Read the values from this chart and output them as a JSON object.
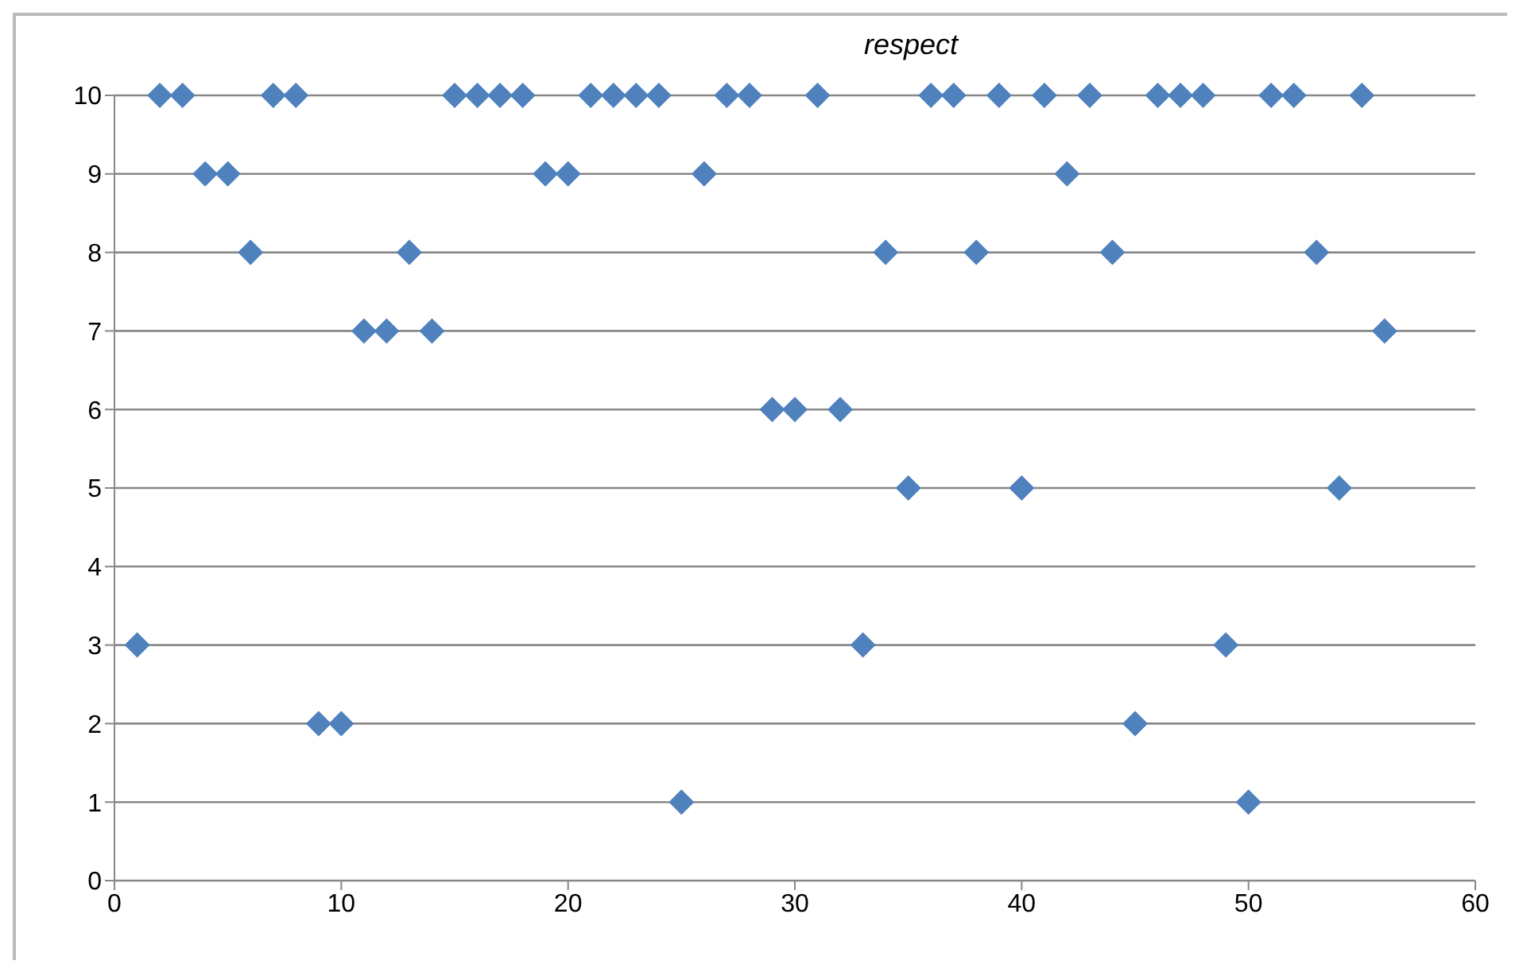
{
  "chart_data": {
    "type": "scatter",
    "title": "respect",
    "x": [
      1,
      2,
      3,
      4,
      5,
      6,
      7,
      8,
      9,
      10,
      11,
      12,
      13,
      14,
      15,
      16,
      17,
      18,
      19,
      20,
      21,
      22,
      23,
      24,
      25,
      26,
      27,
      28,
      29,
      30,
      31,
      32,
      33,
      34,
      35,
      36,
      37,
      38,
      39,
      40,
      41,
      42,
      43,
      44,
      45,
      46,
      47,
      48,
      49,
      50,
      51,
      52,
      53,
      54,
      55,
      56
    ],
    "series": [
      {
        "color": "#4f81bd",
        "values": [
          3,
          10,
          10,
          9,
          9,
          8,
          10,
          10,
          2,
          2,
          7,
          7,
          8,
          7,
          10,
          10,
          10,
          10,
          9,
          9,
          10,
          10,
          10,
          10,
          1,
          9,
          10,
          10,
          6,
          6,
          10,
          6,
          3,
          8,
          5,
          10,
          10,
          8,
          10,
          5,
          10,
          9,
          10,
          8,
          2,
          10,
          10,
          10,
          3,
          1,
          10,
          10,
          8,
          5,
          10,
          7
        ]
      }
    ],
    "xlim": [
      0,
      60
    ],
    "xticks": [
      0,
      10,
      20,
      30,
      40,
      50,
      60
    ],
    "ylim": [
      0,
      10
    ],
    "yticks": [
      0,
      1,
      2,
      3,
      4,
      5,
      6,
      7,
      8,
      9,
      10
    ],
    "grid": "y",
    "marker": "diamond"
  }
}
